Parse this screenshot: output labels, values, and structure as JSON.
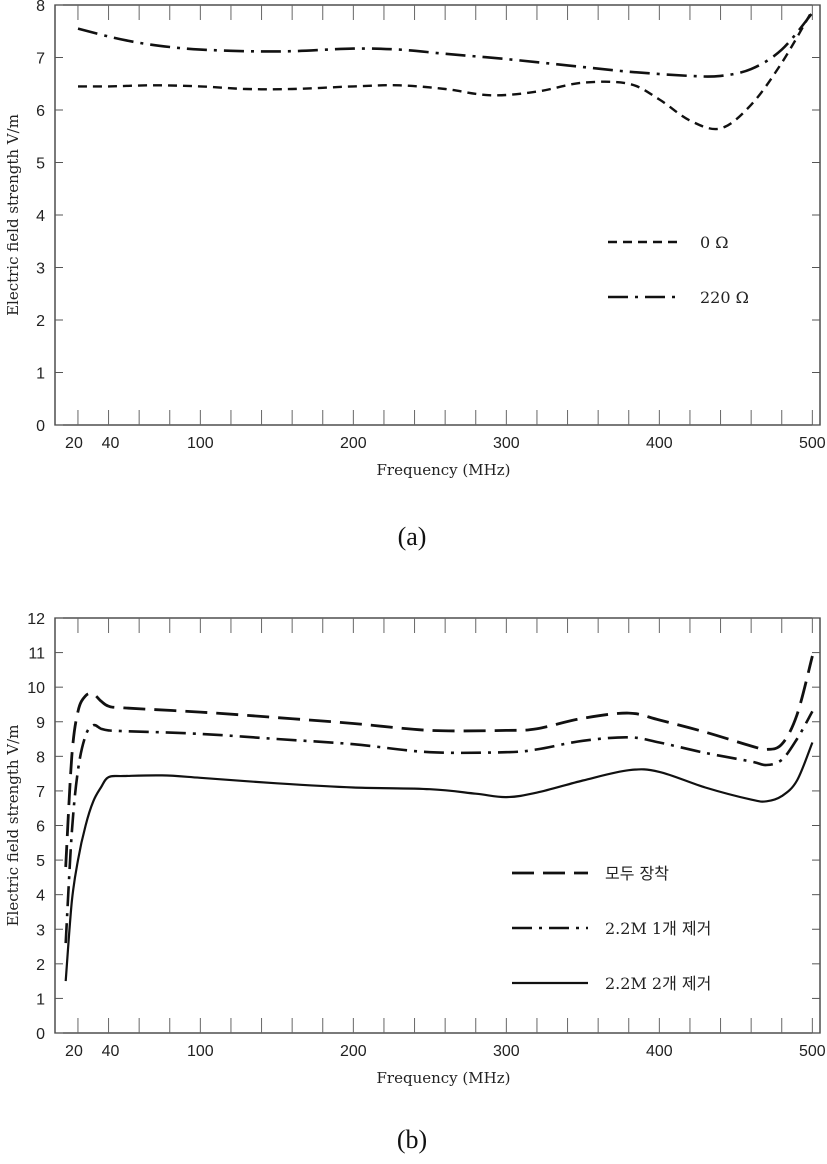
{
  "chart_data": [
    {
      "type": "line",
      "panel_label": "(a)",
      "xlabel": "Frequency (MHz)",
      "ylabel": "Electric field strength V/m",
      "xlim": [
        5,
        505
      ],
      "ylim": [
        0,
        8
      ],
      "xticks": [
        20,
        40,
        100,
        200,
        300,
        400,
        500
      ],
      "yticks": [
        0,
        1,
        2,
        3,
        4,
        5,
        6,
        7,
        8
      ],
      "grid": false,
      "legend_position": "center-right",
      "series": [
        {
          "name": "0 Ω",
          "style": "dashed",
          "x": [
            20,
            40,
            70,
            100,
            130,
            160,
            200,
            230,
            260,
            290,
            320,
            350,
            380,
            400,
            420,
            440,
            460,
            480,
            500
          ],
          "y": [
            6.45,
            6.45,
            6.47,
            6.45,
            6.4,
            6.4,
            6.45,
            6.47,
            6.4,
            6.28,
            6.35,
            6.52,
            6.5,
            6.2,
            5.8,
            5.65,
            6.1,
            6.9,
            7.9
          ]
        },
        {
          "name": "220 Ω",
          "style": "dashdot",
          "x": [
            20,
            40,
            60,
            80,
            100,
            130,
            160,
            200,
            230,
            260,
            300,
            340,
            380,
            420,
            440,
            460,
            480,
            500
          ],
          "y": [
            7.55,
            7.4,
            7.28,
            7.2,
            7.15,
            7.12,
            7.12,
            7.17,
            7.15,
            7.07,
            6.97,
            6.85,
            6.73,
            6.65,
            6.65,
            6.78,
            7.15,
            7.85
          ]
        }
      ]
    },
    {
      "type": "line",
      "panel_label": "(b)",
      "xlabel": "Frequency (MHz)",
      "ylabel": "Electric field strength V/m",
      "xlim": [
        5,
        505
      ],
      "ylim": [
        0,
        12
      ],
      "xticks": [
        20,
        40,
        100,
        200,
        300,
        400,
        500
      ],
      "yticks": [
        0,
        1,
        2,
        3,
        4,
        5,
        6,
        7,
        8,
        9,
        10,
        11,
        12
      ],
      "grid": false,
      "legend_position": "lower-right",
      "series": [
        {
          "name": "모두 장착",
          "style": "longdash",
          "x": [
            12,
            16,
            20,
            25,
            30,
            35,
            40,
            50,
            100,
            150,
            200,
            250,
            300,
            320,
            350,
            380,
            400,
            430,
            460,
            470,
            480,
            490,
            500
          ],
          "y": [
            4.8,
            8.0,
            9.3,
            9.75,
            9.8,
            9.6,
            9.45,
            9.4,
            9.28,
            9.12,
            8.95,
            8.75,
            8.75,
            8.8,
            9.1,
            9.25,
            9.05,
            8.7,
            8.3,
            8.2,
            8.35,
            9.2,
            10.9
          ]
        },
        {
          "name": "2.2M  1개 제거",
          "style": "dashdot",
          "x": [
            12,
            16,
            20,
            25,
            30,
            35,
            40,
            50,
            100,
            150,
            200,
            250,
            300,
            320,
            350,
            380,
            400,
            430,
            460,
            470,
            480,
            490,
            500
          ],
          "y": [
            2.6,
            5.8,
            7.6,
            8.6,
            8.9,
            8.8,
            8.75,
            8.73,
            8.65,
            8.5,
            8.35,
            8.12,
            8.12,
            8.2,
            8.45,
            8.55,
            8.4,
            8.1,
            7.85,
            7.75,
            7.9,
            8.5,
            9.3
          ]
        },
        {
          "name": "2.2M  2개 제거",
          "style": "solid",
          "x": [
            12,
            16,
            20,
            25,
            30,
            35,
            40,
            50,
            75,
            100,
            150,
            200,
            250,
            280,
            300,
            320,
            350,
            380,
            400,
            430,
            460,
            470,
            480,
            490,
            500
          ],
          "y": [
            1.5,
            3.8,
            5.0,
            6.0,
            6.7,
            7.1,
            7.4,
            7.43,
            7.45,
            7.38,
            7.22,
            7.1,
            7.05,
            6.92,
            6.82,
            6.95,
            7.3,
            7.6,
            7.55,
            7.1,
            6.75,
            6.7,
            6.85,
            7.3,
            8.4
          ]
        }
      ]
    }
  ]
}
